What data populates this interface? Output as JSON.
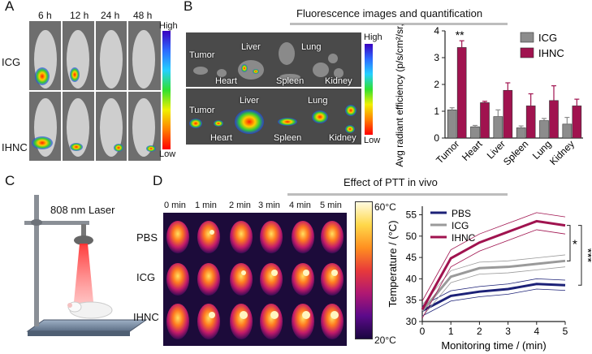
{
  "panelA": {
    "label": "A",
    "times": [
      "6 h",
      "12 h",
      "24 h",
      "48 h"
    ],
    "rows": [
      "ICG",
      "IHNC"
    ],
    "scale_high": "High",
    "scale_low": "Low"
  },
  "panelB": {
    "label": "B",
    "header": "Fluorescence images and quantification",
    "organs_top": {
      "tumor": "Tumor",
      "heart": "Heart",
      "liver": "Liver",
      "spleen": "Spleen",
      "lung": "Lung",
      "kidney": "Kidney"
    },
    "scale_high": "High",
    "scale_low": "Low"
  },
  "panelC": {
    "label": "C",
    "laser": "808 nm Laser"
  },
  "panelD": {
    "label": "D",
    "header": "Effect of  PTT in vivo",
    "times": [
      "0 min",
      "1 min",
      "2 min",
      "3 min",
      "4 min",
      "5 min"
    ],
    "rows": [
      "PBS",
      "ICG",
      "IHNC"
    ],
    "scale_high": "60°C",
    "scale_low": "20°C"
  },
  "chart_data": [
    {
      "type": "bar",
      "ylabel": "Avg radiant efficiency (p/s/cm²/sr,*10⁶)",
      "categories": [
        "Tumor",
        "Heart",
        "Liver",
        "Spleen",
        "Lung",
        "Kidney"
      ],
      "ylim": [
        0,
        4
      ],
      "yticks": [
        "0",
        "1",
        "2",
        "3",
        "4"
      ],
      "series": [
        {
          "name": "ICG",
          "color": "#8c8c8c",
          "values": [
            1.05,
            0.42,
            0.8,
            0.38,
            0.65,
            0.52
          ],
          "errors": [
            0.08,
            0.05,
            0.25,
            0.07,
            0.08,
            0.25
          ]
        },
        {
          "name": "IHNC",
          "color": "#a0134f",
          "values": [
            3.38,
            1.32,
            1.78,
            1.2,
            1.4,
            1.2
          ],
          "errors": [
            0.25,
            0.05,
            0.28,
            0.45,
            0.55,
            0.25
          ]
        }
      ],
      "annotation": "**"
    },
    {
      "type": "line",
      "xlabel": "Monitoring time / (min)",
      "ylabel": "Temperature / (°C)",
      "x": [
        0,
        1,
        2,
        3,
        4,
        5
      ],
      "xlim": [
        0,
        5
      ],
      "ylim": [
        30,
        57
      ],
      "yticks": [
        "30",
        "35",
        "40",
        "45",
        "50",
        "55"
      ],
      "xticks": [
        "0",
        "1",
        "2",
        "3",
        "4",
        "5"
      ],
      "series": [
        {
          "name": "PBS",
          "color": "#1c2177",
          "values": [
            32.5,
            36.0,
            37.0,
            37.6,
            38.8,
            38.5
          ],
          "band": 1.2
        },
        {
          "name": "ICG",
          "color": "#9a9a9a",
          "values": [
            32.5,
            40.5,
            42.5,
            42.8,
            43.5,
            44.2
          ],
          "band": 1.4
        },
        {
          "name": "IHNC",
          "color": "#a0134f",
          "values": [
            32.8,
            44.8,
            48.5,
            51.0,
            53.5,
            52.5
          ],
          "band": 2.0
        }
      ],
      "significance": [
        "*",
        "***"
      ]
    }
  ]
}
